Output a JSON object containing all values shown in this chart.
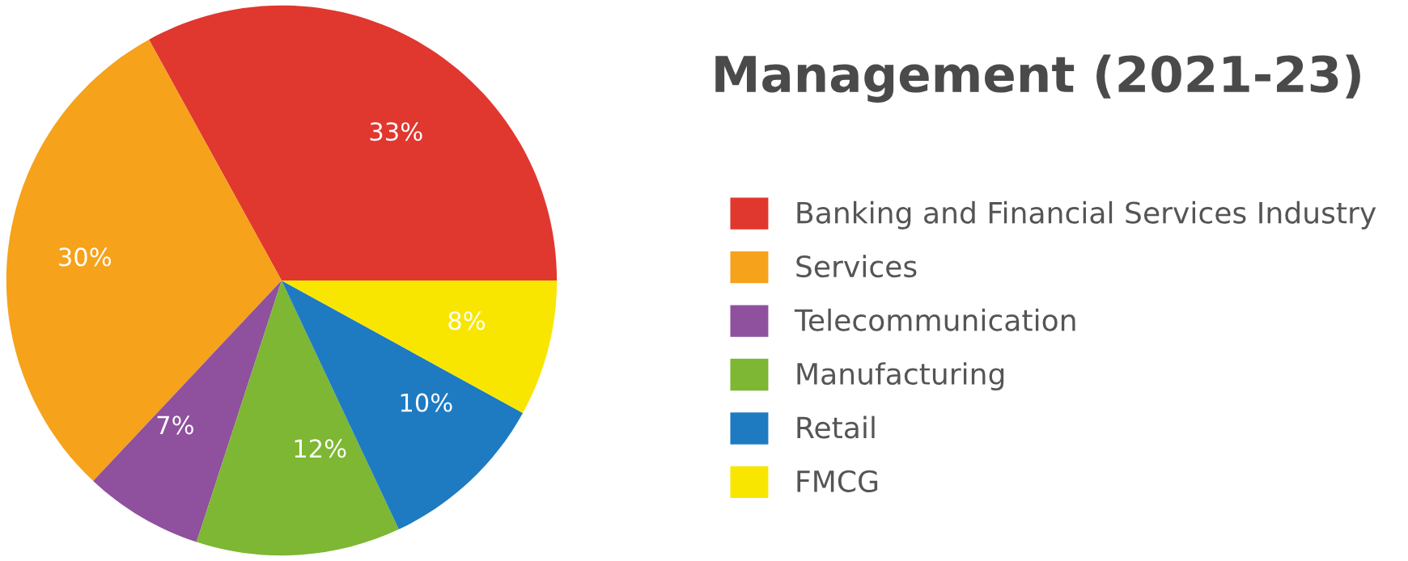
{
  "chart_data": {
    "type": "pie",
    "title": "Management (2021-23)",
    "categories": [
      "Banking and Financial Services Industry",
      "Services",
      "Telecommunication",
      "Manufacturing",
      "Retail",
      "FMCG"
    ],
    "values": [
      33,
      30,
      7,
      12,
      10,
      8
    ],
    "colors": [
      "#e0372f",
      "#f6a21b",
      "#8f509e",
      "#7db733",
      "#1e7bc2",
      "#f8e600"
    ],
    "value_labels": [
      "33%",
      "30%",
      "7%",
      "12%",
      "10%",
      "8%"
    ],
    "legend": "right"
  }
}
